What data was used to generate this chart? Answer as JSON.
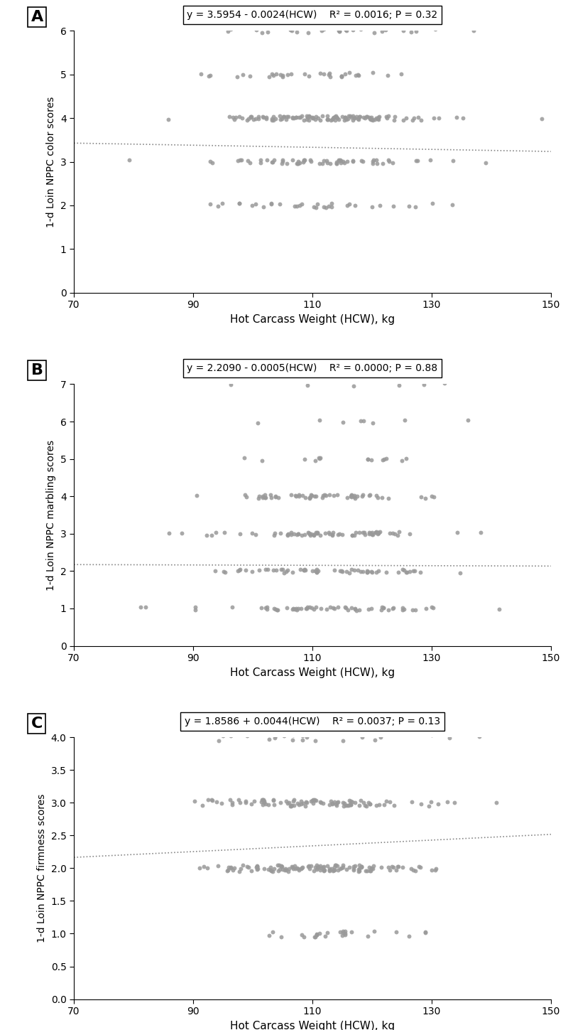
{
  "panels": [
    {
      "label": "A",
      "equation": "y = 3.5954 - 0.0024(HCW)",
      "r2_p": "R² = 0.0016; P = 0.32",
      "intercept": 3.5954,
      "slope": -0.0024,
      "ylabel": "1-d Loin NPPC color scores",
      "ylim": [
        0,
        6
      ],
      "yticks": [
        0,
        1,
        2,
        3,
        4,
        5,
        6
      ],
      "seed": 42,
      "score_probs": [
        0,
        0,
        0.1,
        0.27,
        0.45,
        0.12,
        0.06
      ],
      "score_values": [
        0,
        1,
        2,
        3,
        4,
        5,
        6
      ]
    },
    {
      "label": "B",
      "equation": "y = 2.2090 - 0.0005(HCW)",
      "r2_p": "R² = 0.0000; P = 0.88",
      "intercept": 2.209,
      "slope": -0.0005,
      "ylabel": "1-d Loin NPPC marbling scores",
      "ylim": [
        0,
        7
      ],
      "yticks": [
        0,
        1,
        2,
        3,
        4,
        5,
        6,
        7
      ],
      "seed": 99,
      "score_probs": [
        0,
        0.22,
        0.22,
        0.27,
        0.18,
        0.07,
        0.03,
        0.01
      ],
      "score_values": [
        0,
        1,
        2,
        3,
        4,
        5,
        6,
        7
      ]
    },
    {
      "label": "C",
      "equation": "y = 1.8586 + 0.0044(HCW)",
      "r2_p": "R² = 0.0037; P = 0.13",
      "intercept": 1.8586,
      "slope": 0.0044,
      "ylabel": "1-d Loin NPPC firmness scores",
      "ylim": [
        0,
        4
      ],
      "yticks": [
        0,
        0.5,
        1,
        1.5,
        2,
        2.5,
        3,
        3.5,
        4
      ],
      "seed": 77,
      "score_probs": [
        0,
        0.12,
        0.43,
        0.35,
        0.1
      ],
      "score_values": [
        0,
        1,
        2,
        3,
        4
      ]
    }
  ],
  "xlabel": "Hot Carcass Weight (HCW), kg",
  "xlim": [
    70,
    150
  ],
  "xticks": [
    70,
    90,
    110,
    130,
    150
  ],
  "n_points": 280,
  "dot_color": "#999999",
  "dot_size": 18,
  "line_color": "#888888",
  "background_color": "#ffffff",
  "box_color": "#000000"
}
